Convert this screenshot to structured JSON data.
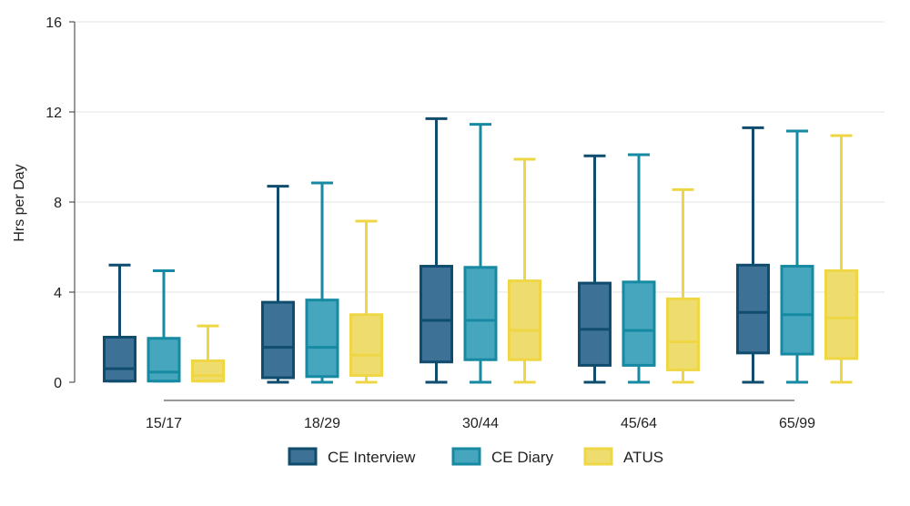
{
  "chart_data": {
    "type": "box",
    "ylabel": "Hrs per Day",
    "ylim": [
      0,
      16
    ],
    "yticks": [
      0,
      4,
      8,
      12,
      16
    ],
    "categories": [
      "15/17",
      "18/29",
      "30/44",
      "45/64",
      "65/99"
    ],
    "grid": "horizontal",
    "legend_position": "bottom",
    "series": [
      {
        "name": "CE Interview",
        "color": "#0f4c6e",
        "fill": "#3d7196",
        "boxes": [
          {
            "min": 0.05,
            "q1": 0.05,
            "median": 0.6,
            "q3": 2.0,
            "max": 5.2
          },
          {
            "min": 0.0,
            "q1": 0.2,
            "median": 1.55,
            "q3": 3.55,
            "max": 8.7
          },
          {
            "min": 0.0,
            "q1": 0.9,
            "median": 2.75,
            "q3": 5.15,
            "max": 11.7
          },
          {
            "min": 0.0,
            "q1": 0.75,
            "median": 2.35,
            "q3": 4.4,
            "max": 10.05
          },
          {
            "min": 0.0,
            "q1": 1.3,
            "median": 3.1,
            "q3": 5.2,
            "max": 11.3
          }
        ]
      },
      {
        "name": "CE Diary",
        "color": "#168aa3",
        "fill": "#45a6bd",
        "boxes": [
          {
            "min": 0.05,
            "q1": 0.05,
            "median": 0.45,
            "q3": 1.95,
            "max": 4.95
          },
          {
            "min": 0.0,
            "q1": 0.25,
            "median": 1.55,
            "q3": 3.65,
            "max": 8.85
          },
          {
            "min": 0.0,
            "q1": 1.0,
            "median": 2.75,
            "q3": 5.1,
            "max": 11.45
          },
          {
            "min": 0.0,
            "q1": 0.75,
            "median": 2.3,
            "q3": 4.45,
            "max": 10.1
          },
          {
            "min": 0.0,
            "q1": 1.25,
            "median": 3.0,
            "q3": 5.15,
            "max": 11.15
          }
        ]
      },
      {
        "name": "ATUS",
        "color": "#efd645",
        "fill": "#efdc6e",
        "boxes": [
          {
            "min": 0.05,
            "q1": 0.05,
            "median": 0.3,
            "q3": 0.95,
            "max": 2.5
          },
          {
            "min": 0.0,
            "q1": 0.3,
            "median": 1.2,
            "q3": 3.0,
            "max": 7.15
          },
          {
            "min": 0.0,
            "q1": 1.0,
            "median": 2.3,
            "q3": 4.5,
            "max": 9.9
          },
          {
            "min": 0.0,
            "q1": 0.55,
            "median": 1.8,
            "q3": 3.7,
            "max": 8.55
          },
          {
            "min": 0.0,
            "q1": 1.05,
            "median": 2.85,
            "q3": 4.95,
            "max": 10.95
          }
        ]
      }
    ]
  }
}
